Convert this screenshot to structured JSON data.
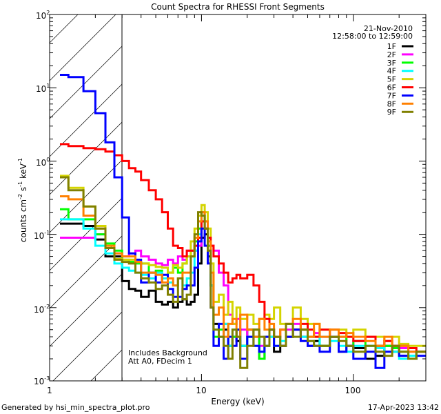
{
  "footer": {
    "generated_by": "Generated by hsi_min_spectra_plot.pro",
    "timestamp": "17-Apr-2023 13:42"
  },
  "chart_data": {
    "type": "line",
    "title": "Count Spectra for RHESSI Front Segments",
    "date": "21-Nov-2010",
    "time_range": "12:58:00 to 12:59:00",
    "xlabel": "Energy (keV)",
    "ylabel": {
      "base": "counts cm",
      "exp1": "-2",
      "mid": " s",
      "exp2": "-1",
      "unit": " keV",
      "exp3": "-1"
    },
    "xscale": "log",
    "yscale": "log",
    "xlim": [
      1,
      300
    ],
    "ylim": [
      0.001,
      100
    ],
    "x_ticks": [
      {
        "value": 1,
        "label": "1"
      },
      {
        "value": 10,
        "label": "10"
      },
      {
        "value": 100,
        "label": "100"
      }
    ],
    "y_ticks": [
      {
        "value": 0.001,
        "base": "10",
        "exp": "-3"
      },
      {
        "value": 0.01,
        "base": "10",
        "exp": "-2"
      },
      {
        "value": 0.1,
        "base": "10",
        "exp": "-1"
      },
      {
        "value": 1,
        "base": "10",
        "exp": "0"
      },
      {
        "value": 10,
        "base": "10",
        "exp": "1"
      },
      {
        "value": 100,
        "base": "10",
        "exp": "2"
      }
    ],
    "hatched_region_max_keV": 3,
    "annotations": [
      "Includes Background",
      "Att A0, FDecim 1"
    ],
    "legend_position": "top-right",
    "energy_edges": [
      1.17,
      1.33,
      1.67,
      2.0,
      2.33,
      2.67,
      3.0,
      3.33,
      3.67,
      4.0,
      4.5,
      5.0,
      5.5,
      6.0,
      6.5,
      7.0,
      7.5,
      8.0,
      8.5,
      9.0,
      9.5,
      10.0,
      10.5,
      11.0,
      11.5,
      12,
      13,
      14,
      15,
      16,
      17,
      18,
      20,
      22,
      24,
      26,
      28,
      30,
      33,
      36,
      40,
      45,
      50,
      55,
      60,
      70,
      80,
      90,
      100,
      120,
      140,
      160,
      180,
      200,
      230,
      260,
      300
    ],
    "series": [
      {
        "name": "1F",
        "color": "#000000",
        "values": [
          0.14,
          0.14,
          0.13,
          0.085,
          0.05,
          0.05,
          0.023,
          0.018,
          0.017,
          0.014,
          0.017,
          0.012,
          0.011,
          0.012,
          0.01,
          0.012,
          0.013,
          0.011,
          0.012,
          0.015,
          0.04,
          0.09,
          0.1,
          0.05,
          0.02,
          0.006,
          0.004,
          0.005,
          0.003,
          0.004,
          0.0035,
          0.003,
          0.005,
          0.004,
          0.002,
          0.003,
          0.004,
          0.0025,
          0.003,
          0.004,
          0.005,
          0.004,
          0.003,
          0.0035,
          0.003,
          0.004,
          0.0025,
          0.003,
          0.0028,
          0.002,
          0.0022,
          0.003,
          0.0025,
          0.0022,
          0.002,
          0.0025
        ]
      },
      {
        "name": "2F",
        "color": "#ff00ff",
        "values": [
          0.09,
          0.09,
          0.09,
          0.1,
          0.065,
          0.055,
          0.05,
          0.055,
          0.06,
          0.05,
          0.045,
          0.04,
          0.038,
          0.045,
          0.04,
          0.05,
          0.045,
          0.06,
          0.06,
          0.06,
          0.07,
          0.15,
          0.12,
          0.07,
          0.07,
          0.06,
          0.03,
          0.02,
          0.008,
          0.006,
          0.007,
          0.005,
          0.004,
          0.005,
          0.003,
          0.004,
          0.005,
          0.004,
          0.003,
          0.005,
          0.006,
          0.005,
          0.004,
          0.0045,
          0.004,
          0.005,
          0.004,
          0.003,
          0.0035,
          0.004,
          0.003,
          0.0035,
          0.003,
          0.0028,
          0.0025,
          0.0025
        ]
      },
      {
        "name": "3F",
        "color": "#00ff00",
        "values": [
          0.22,
          0.16,
          0.16,
          0.1,
          0.075,
          0.06,
          0.045,
          0.042,
          0.04,
          0.04,
          0.03,
          0.032,
          0.025,
          0.03,
          0.035,
          0.03,
          0.04,
          0.05,
          0.06,
          0.08,
          0.12,
          0.2,
          0.15,
          0.07,
          0.02,
          0.004,
          0.005,
          0.006,
          0.003,
          0.004,
          0.005,
          0.003,
          0.004,
          0.005,
          0.002,
          0.004,
          0.005,
          0.004,
          0.003,
          0.004,
          0.005,
          0.005,
          0.004,
          0.004,
          0.003,
          0.004,
          0.004,
          0.003,
          0.0035,
          0.003,
          0.003,
          0.003,
          0.0028,
          0.0025,
          0.0022,
          0.0025
        ]
      },
      {
        "name": "4F",
        "color": "#00ffff",
        "values": [
          0.16,
          0.16,
          0.12,
          0.07,
          0.055,
          0.04,
          0.035,
          0.032,
          0.03,
          0.028,
          0.025,
          0.03,
          0.025,
          0.022,
          0.02,
          0.025,
          0.02,
          0.025,
          0.03,
          0.06,
          0.1,
          0.18,
          0.12,
          0.06,
          0.02,
          0.005,
          0.004,
          0.006,
          0.003,
          0.005,
          0.004,
          0.003,
          0.004,
          0.003,
          0.0025,
          0.003,
          0.004,
          0.003,
          0.0035,
          0.004,
          0.005,
          0.004,
          0.0035,
          0.003,
          0.004,
          0.0035,
          0.003,
          0.0025,
          0.003,
          0.003,
          0.0028,
          0.0025,
          0.0025,
          0.002,
          0.0022,
          0.0025
        ]
      },
      {
        "name": "5F",
        "color": "#d4d400",
        "values": [
          0.63,
          0.43,
          0.24,
          0.13,
          0.07,
          0.046,
          0.045,
          0.045,
          0.042,
          0.04,
          0.038,
          0.036,
          0.035,
          0.03,
          0.038,
          0.035,
          0.04,
          0.05,
          0.08,
          0.12,
          0.18,
          0.25,
          0.2,
          0.12,
          0.04,
          0.012,
          0.015,
          0.008,
          0.012,
          0.006,
          0.01,
          0.007,
          0.008,
          0.006,
          0.007,
          0.008,
          0.007,
          0.01,
          0.006,
          0.006,
          0.01,
          0.007,
          0.006,
          0.006,
          0.005,
          0.005,
          0.005,
          0.004,
          0.005,
          0.004,
          0.004,
          0.0035,
          0.004,
          0.0032,
          0.003,
          0.003
        ]
      },
      {
        "name": "6F",
        "color": "#ff0000",
        "values": [
          1.7,
          1.6,
          1.5,
          1.45,
          1.35,
          1.2,
          1.0,
          0.8,
          0.72,
          0.55,
          0.4,
          0.3,
          0.2,
          0.12,
          0.07,
          0.065,
          0.05,
          0.06,
          0.06,
          0.07,
          0.09,
          0.15,
          0.12,
          0.09,
          0.07,
          0.05,
          0.04,
          0.03,
          0.022,
          0.025,
          0.028,
          0.025,
          0.028,
          0.02,
          0.012,
          0.007,
          0.005,
          0.004,
          0.005,
          0.004,
          0.005,
          0.006,
          0.005,
          0.004,
          0.005,
          0.004,
          0.0045,
          0.004,
          0.0035,
          0.004,
          0.003,
          0.0035,
          0.003,
          0.003,
          0.0028,
          0.0025
        ]
      },
      {
        "name": "7F",
        "color": "#0000ff",
        "values": [
          15,
          14,
          9,
          4.5,
          1.8,
          0.6,
          0.17,
          0.055,
          0.045,
          0.022,
          0.03,
          0.022,
          0.028,
          0.018,
          0.014,
          0.014,
          0.018,
          0.02,
          0.02,
          0.035,
          0.08,
          0.12,
          0.07,
          0.04,
          0.01,
          0.003,
          0.006,
          0.002,
          0.004,
          0.003,
          0.005,
          0.002,
          0.004,
          0.003,
          0.0025,
          0.004,
          0.005,
          0.003,
          0.003,
          0.004,
          0.005,
          0.0035,
          0.003,
          0.003,
          0.0025,
          0.004,
          0.0025,
          0.003,
          0.002,
          0.0025,
          0.0015,
          0.0025,
          0.003,
          0.0022,
          0.002,
          0.0022
        ]
      },
      {
        "name": "8F",
        "color": "#ff8000",
        "values": [
          0.33,
          0.3,
          0.18,
          0.12,
          0.07,
          0.055,
          0.05,
          0.05,
          0.042,
          0.03,
          0.03,
          0.028,
          0.022,
          0.025,
          0.02,
          0.025,
          0.03,
          0.03,
          0.05,
          0.09,
          0.15,
          0.2,
          0.15,
          0.08,
          0.03,
          0.008,
          0.01,
          0.004,
          0.006,
          0.007,
          0.004,
          0.008,
          0.005,
          0.004,
          0.007,
          0.005,
          0.006,
          0.004,
          0.005,
          0.006,
          0.007,
          0.005,
          0.004,
          0.006,
          0.004,
          0.005,
          0.004,
          0.0045,
          0.004,
          0.0035,
          0.003,
          0.004,
          0.003,
          0.003,
          0.0025,
          0.0025
        ]
      },
      {
        "name": "9F",
        "color": "#808000",
        "values": [
          0.6,
          0.4,
          0.24,
          0.12,
          0.065,
          0.045,
          0.042,
          0.04,
          0.03,
          0.025,
          0.022,
          0.018,
          0.02,
          0.015,
          0.012,
          0.025,
          0.013,
          0.015,
          0.05,
          0.1,
          0.2,
          0.18,
          0.12,
          0.06,
          0.01,
          0.005,
          0.004,
          0.003,
          0.002,
          0.005,
          0.004,
          0.0015,
          0.003,
          0.005,
          0.004,
          0.003,
          0.005,
          0.004,
          0.003,
          0.006,
          0.004,
          0.005,
          0.0035,
          0.003,
          0.003,
          0.004,
          0.0035,
          0.003,
          0.0025,
          0.003,
          0.0025,
          0.0022,
          0.003,
          0.0025,
          0.002,
          0.0025
        ]
      }
    ]
  }
}
